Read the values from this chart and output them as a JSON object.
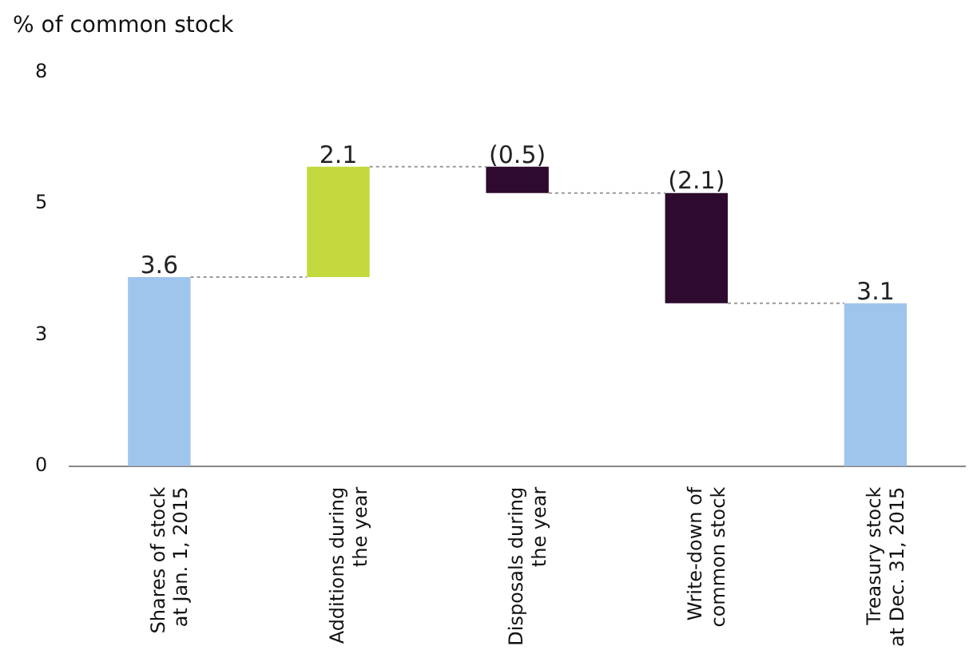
{
  "chart_data": {
    "type": "bar",
    "ylabel": "% of common stock",
    "categories": [
      "Shares of stock at Jan. 1, 2015",
      "Additions during the year",
      "Disposals during the year",
      "Write-down of common stock",
      "Treasury stock at Dec. 31, 2015"
    ],
    "values": [
      3.6,
      2.1,
      -0.5,
      -2.1,
      3.1
    ],
    "base": [
      0,
      3.6,
      5.7,
      5.2,
      0
    ],
    "colors": [
      "#a0c5ed",
      "#c4d93e",
      "#2d0a2e",
      "#2d0a2e",
      "#a0c5ed"
    ],
    "value_labels": [
      "3.6",
      "2.1",
      "(0.5)",
      "(2.1)",
      "3.1"
    ],
    "ylim": [
      0,
      7.5
    ],
    "yticks": [
      0,
      {
        "value": 2.5,
        "label": "3"
      },
      5,
      {
        "value": 7.5,
        "label": "8"
      }
    ],
    "grid": false,
    "legend": false
  }
}
